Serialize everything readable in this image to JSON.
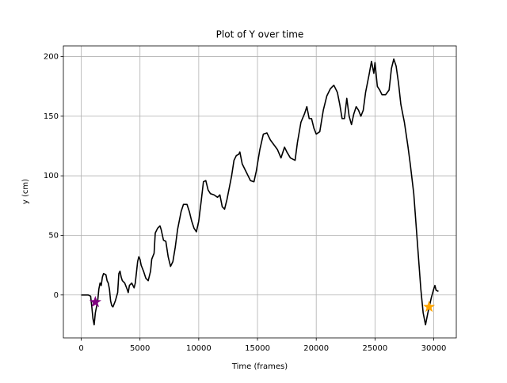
{
  "chart_data": {
    "type": "line",
    "title": "Plot of Y over time",
    "xlabel": "Time (frames)",
    "ylabel": "y (cm)",
    "x": [
      0,
      500,
      600,
      800,
      900,
      1000,
      1100,
      1200,
      1400,
      1500,
      1600,
      1700,
      1800,
      1900,
      2100,
      2200,
      2300,
      2400,
      2500,
      2600,
      2700,
      2900,
      3100,
      3200,
      3300,
      3400,
      3500,
      3700,
      3900,
      4000,
      4100,
      4300,
      4500,
      4600,
      4800,
      4900,
      5000,
      5100,
      5300,
      5500,
      5700,
      5900,
      6000,
      6200,
      6300,
      6500,
      6700,
      6800,
      7000,
      7200,
      7400,
      7600,
      7800,
      8000,
      8200,
      8500,
      8700,
      9000,
      9200,
      9400,
      9600,
      9800,
      10000,
      10200,
      10400,
      10600,
      10800,
      11000,
      11300,
      11600,
      11800,
      12000,
      12200,
      12400,
      12600,
      12800,
      13000,
      13200,
      13400,
      13500,
      13700,
      13900,
      14100,
      14400,
      14700,
      14900,
      15200,
      15500,
      15800,
      16100,
      16400,
      16700,
      17000,
      17300,
      17500,
      17800,
      18200,
      18400,
      18700,
      19000,
      19200,
      19400,
      19600,
      19800,
      20000,
      20300,
      20600,
      20900,
      21200,
      21500,
      21800,
      22000,
      22200,
      22400,
      22600,
      22800,
      23000,
      23200,
      23400,
      23600,
      23800,
      24000,
      24200,
      24500,
      24700,
      24900,
      25000,
      25200,
      25400,
      25600,
      25900,
      26200,
      26400,
      26600,
      26800,
      27000,
      27200,
      27500,
      27800,
      28000,
      28300,
      28600,
      28900,
      29100,
      29300,
      29500,
      29800,
      30000,
      30100,
      30200,
      30400
    ],
    "series": [
      {
        "color": "#000000",
        "values": [
          0,
          0,
          0,
          -1,
          -10,
          -20,
          -25,
          -15,
          -5,
          5,
          10,
          8,
          15,
          18,
          17,
          12,
          10,
          5,
          -5,
          -9,
          -10,
          -5,
          2,
          18,
          20,
          15,
          12,
          10,
          5,
          2,
          8,
          10,
          6,
          10,
          28,
          32,
          30,
          25,
          20,
          14,
          12,
          20,
          30,
          35,
          52,
          56,
          58,
          55,
          46,
          45,
          32,
          24,
          28,
          40,
          55,
          70,
          76,
          76,
          70,
          62,
          56,
          53,
          62,
          78,
          95,
          96,
          88,
          85,
          84,
          82,
          84,
          74,
          72,
          80,
          90,
          100,
          113,
          117,
          118,
          120,
          110,
          106,
          102,
          96,
          95,
          104,
          122,
          135,
          136,
          130,
          126,
          122,
          115,
          124,
          120,
          115,
          113,
          128,
          145,
          152,
          158,
          148,
          148,
          140,
          135,
          137,
          155,
          167,
          173,
          176,
          170,
          160,
          148,
          148,
          165,
          150,
          143,
          152,
          158,
          155,
          150,
          155,
          170,
          185,
          196,
          186,
          195,
          175,
          172,
          168,
          168,
          172,
          190,
          198,
          192,
          178,
          160,
          145,
          125,
          110,
          85,
          45,
          5,
          -15,
          -25,
          -15,
          -2,
          5,
          8,
          4,
          3
        ]
      }
    ],
    "markers": [
      {
        "x": 1200,
        "y": -6,
        "color": "#800080"
      },
      {
        "x": 29600,
        "y": -10,
        "color": "#ffa500"
      }
    ],
    "xlim": [
      -1520,
      31920
    ],
    "ylim": [
      -36,
      209
    ],
    "xticks": [
      0,
      5000,
      10000,
      15000,
      20000,
      25000,
      30000
    ],
    "yticks": [
      0,
      50,
      100,
      150,
      200
    ],
    "grid": true
  }
}
